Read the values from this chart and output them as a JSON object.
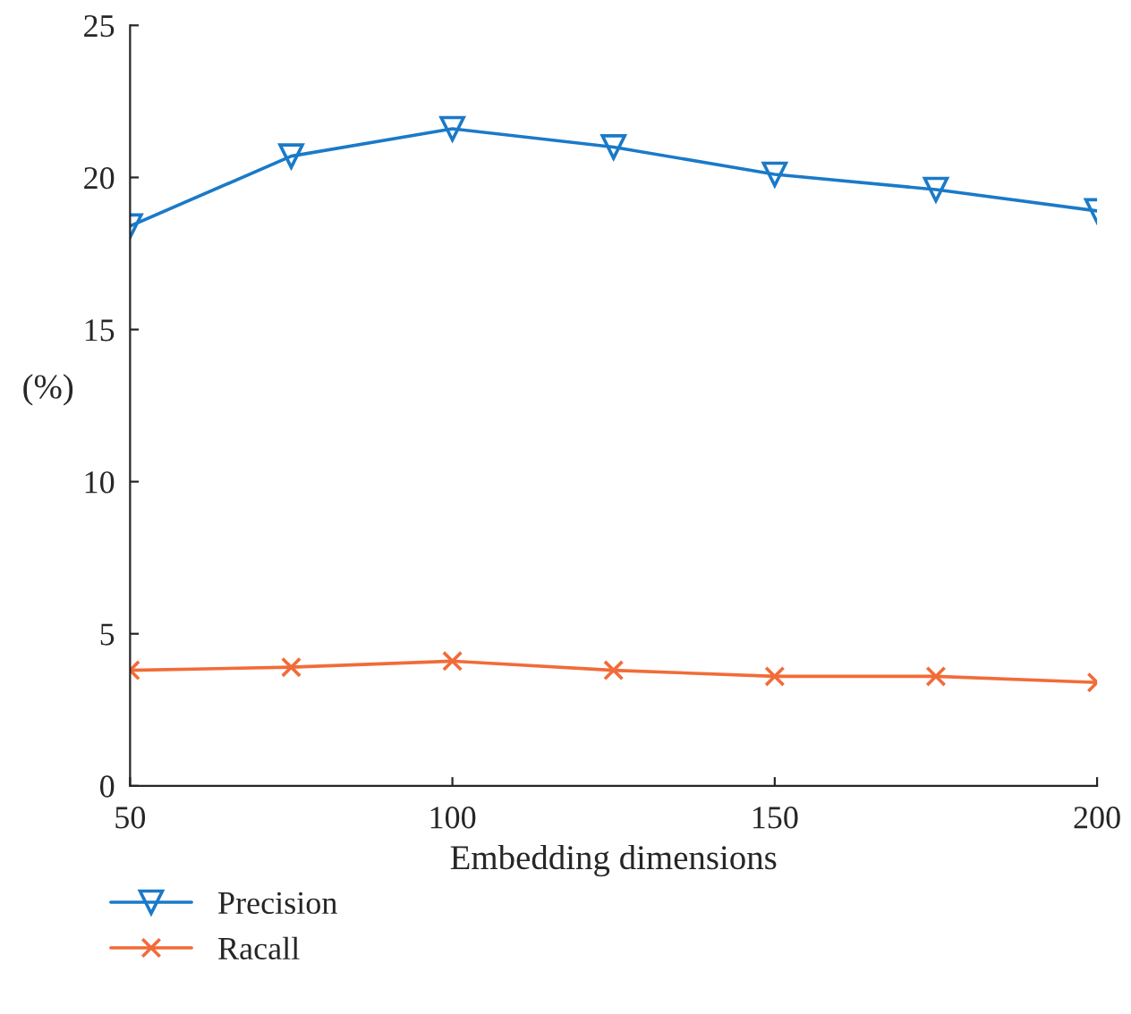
{
  "chart_data": {
    "type": "line",
    "xlabel": "Embedding dimensions",
    "ylabel": "(%)",
    "x": [
      50,
      75,
      100,
      125,
      150,
      175,
      200
    ],
    "series": [
      {
        "name": "Precision",
        "color": "#1a7ac8",
        "marker": "triangle",
        "values": [
          18.4,
          20.7,
          21.6,
          21.0,
          20.1,
          19.6,
          18.9
        ]
      },
      {
        "name": "Racall",
        "color": "#f26b38",
        "marker": "cross",
        "values": [
          3.8,
          3.9,
          4.1,
          3.8,
          3.6,
          3.6,
          3.4
        ]
      }
    ],
    "xlim": [
      50,
      200
    ],
    "xticks": [
      50,
      100,
      150,
      200
    ],
    "ylim": [
      0,
      25
    ],
    "yticks": [
      0,
      5,
      10,
      15,
      20,
      25
    ],
    "grid": false,
    "legend": "bottom",
    "line_style": "solid"
  }
}
